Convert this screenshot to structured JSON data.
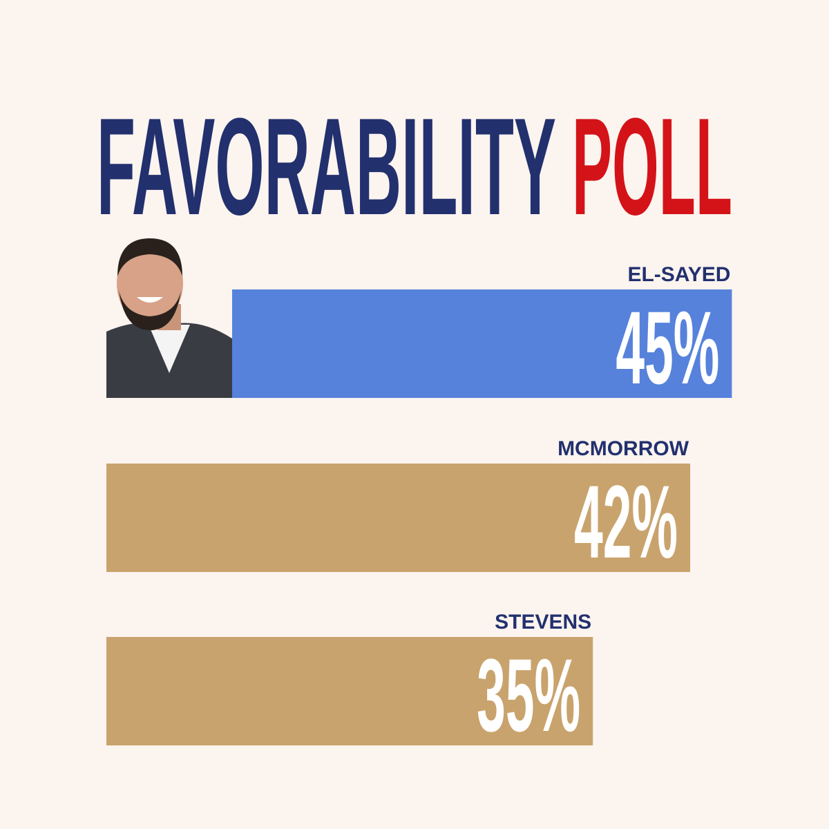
{
  "chart_data": {
    "type": "bar",
    "orientation": "horizontal",
    "title": [
      "FAVORABILITY",
      "POLL"
    ],
    "title_colors": [
      "#22306e",
      "#d41318"
    ],
    "categories": [
      "EL-SAYED",
      "MCMORROW",
      "STEVENS"
    ],
    "values": [
      45,
      42,
      35
    ],
    "value_labels": [
      "45%",
      "42%",
      "35%"
    ],
    "colors": [
      "#5682db",
      "#c9a36d",
      "#c9a36d"
    ]
  }
}
